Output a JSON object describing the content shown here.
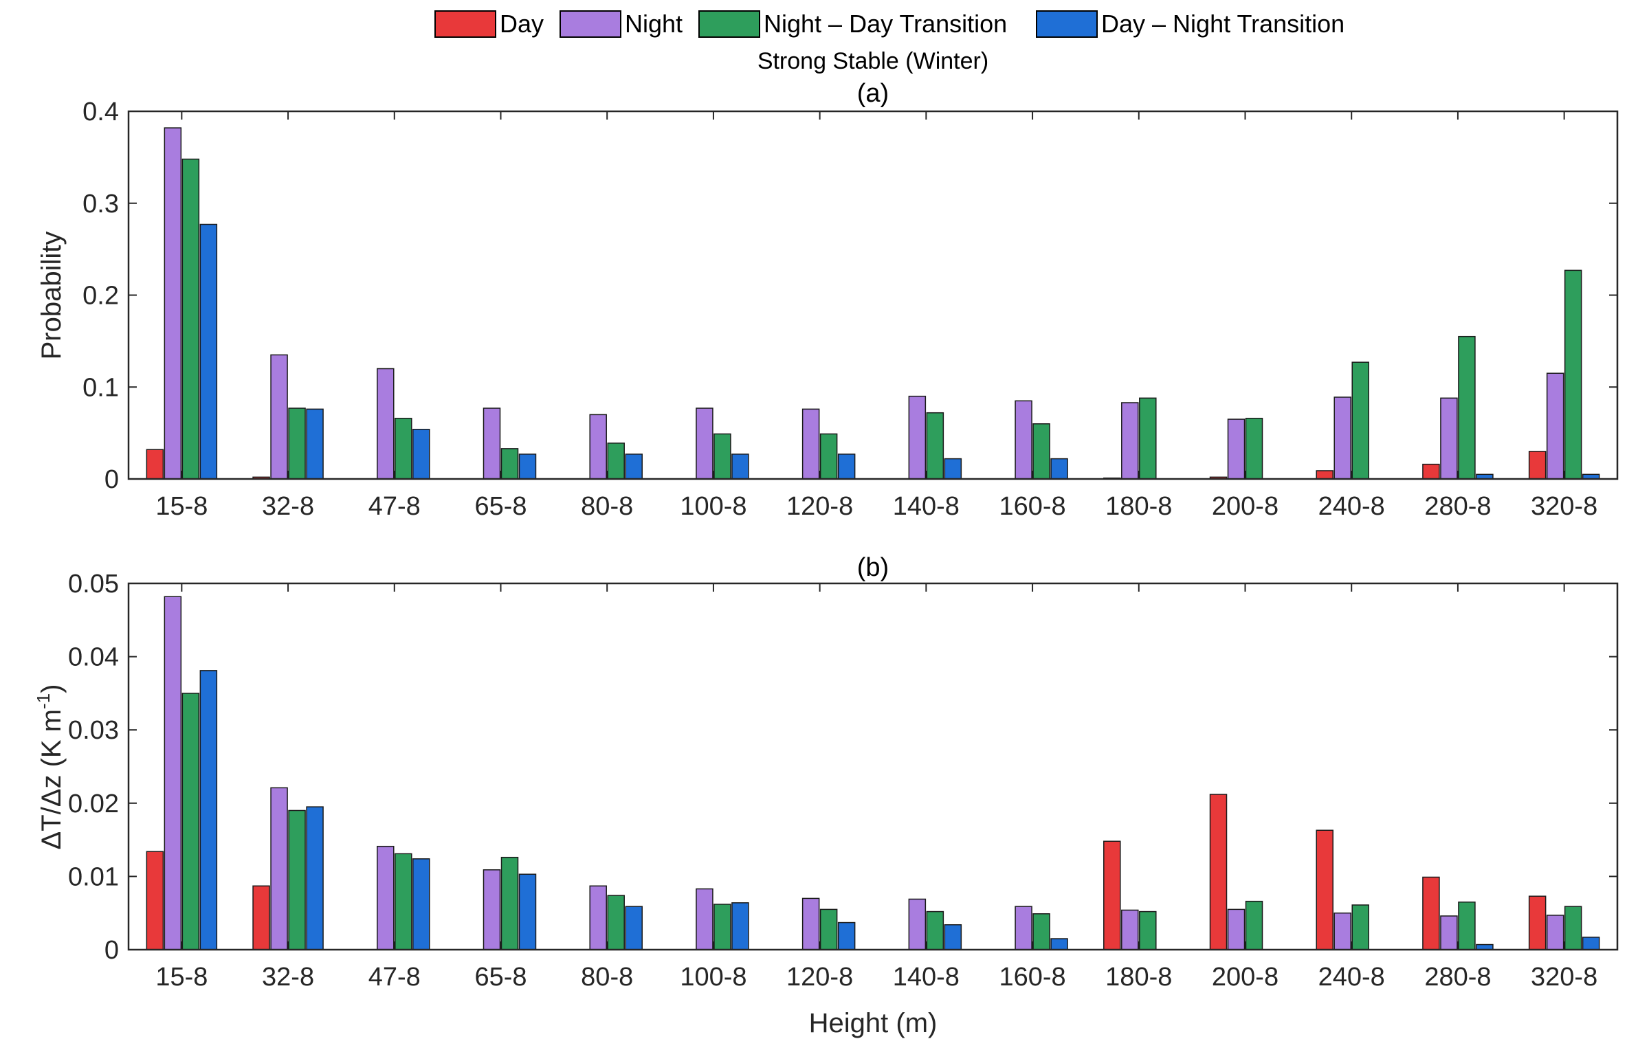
{
  "figure": {
    "subtitle": "Strong Stable (Winter)",
    "xlabel": "Height (m)"
  },
  "legend": [
    {
      "name": "Day",
      "color": "#e8393a"
    },
    {
      "name": "Night",
      "color": "#a97ddf"
    },
    {
      "name": "Night – Day Transition",
      "color": "#2e9e5c"
    },
    {
      "name": "Day – Night Transition",
      "color": "#1f6fd6"
    }
  ],
  "chart_data": [
    {
      "type": "bar",
      "title": "(a)",
      "xlabel": "",
      "ylabel": "Probability",
      "ylim": [
        0,
        0.4
      ],
      "yticks": [
        0,
        0.1,
        0.2,
        0.3,
        0.4
      ],
      "ytick_labels": [
        "0",
        "0.1",
        "0.2",
        "0.3",
        "0.4"
      ],
      "categories": [
        "15-8",
        "32-8",
        "47-8",
        "65-8",
        "80-8",
        "100-8",
        "120-8",
        "140-8",
        "160-8",
        "180-8",
        "200-8",
        "240-8",
        "280-8",
        "320-8"
      ],
      "series": [
        {
          "name": "Day",
          "values": [
            0.032,
            0.002,
            0,
            0,
            0,
            0,
            0,
            0,
            0,
            0.001,
            0.002,
            0.009,
            0.016,
            0.03
          ]
        },
        {
          "name": "Night",
          "values": [
            0.382,
            0.135,
            0.12,
            0.077,
            0.07,
            0.077,
            0.076,
            0.09,
            0.085,
            0.083,
            0.065,
            0.089,
            0.088,
            0.115
          ]
        },
        {
          "name": "Night – Day Transition",
          "values": [
            0.348,
            0.077,
            0.066,
            0.033,
            0.039,
            0.049,
            0.049,
            0.072,
            0.06,
            0.088,
            0.066,
            0.127,
            0.155,
            0.227
          ]
        },
        {
          "name": "Day – Night Transition",
          "values": [
            0.277,
            0.076,
            0.054,
            0.027,
            0.027,
            0.027,
            0.027,
            0.022,
            0.022,
            0,
            0,
            0,
            0.005,
            0.005
          ]
        }
      ]
    },
    {
      "type": "bar",
      "title": "(b)",
      "xlabel": "Height (m)",
      "ylabel": "ΔT/Δz (K m⁻¹)",
      "ylabel_main": "ΔT/Δz (K m",
      "ylabel_sup": "-1",
      "ylabel_end": ")",
      "ylim": [
        0,
        0.05
      ],
      "yticks": [
        0,
        0.01,
        0.02,
        0.03,
        0.04,
        0.05
      ],
      "ytick_labels": [
        "0",
        "0.01",
        "0.02",
        "0.03",
        "0.04",
        "0.05"
      ],
      "categories": [
        "15-8",
        "32-8",
        "47-8",
        "65-8",
        "80-8",
        "100-8",
        "120-8",
        "140-8",
        "160-8",
        "180-8",
        "200-8",
        "240-8",
        "280-8",
        "320-8"
      ],
      "series": [
        {
          "name": "Day",
          "values": [
            0.0134,
            0.0087,
            0,
            0,
            0,
            0,
            0,
            0,
            0,
            0.0148,
            0.0212,
            0.0163,
            0.0099,
            0.0073
          ]
        },
        {
          "name": "Night",
          "values": [
            0.0482,
            0.0221,
            0.0141,
            0.0109,
            0.0087,
            0.0083,
            0.007,
            0.0069,
            0.0059,
            0.0054,
            0.0055,
            0.005,
            0.0046,
            0.0047
          ]
        },
        {
          "name": "Night – Day Transition",
          "values": [
            0.035,
            0.019,
            0.0131,
            0.0126,
            0.0074,
            0.0062,
            0.0055,
            0.0052,
            0.0049,
            0.0052,
            0.0066,
            0.0061,
            0.0065,
            0.0059
          ]
        },
        {
          "name": "Day – Night Transition",
          "values": [
            0.0381,
            0.0195,
            0.0124,
            0.0103,
            0.0059,
            0.0064,
            0.0037,
            0.0034,
            0.0015,
            0,
            0,
            0,
            0.0007,
            0.0017
          ]
        }
      ]
    }
  ]
}
